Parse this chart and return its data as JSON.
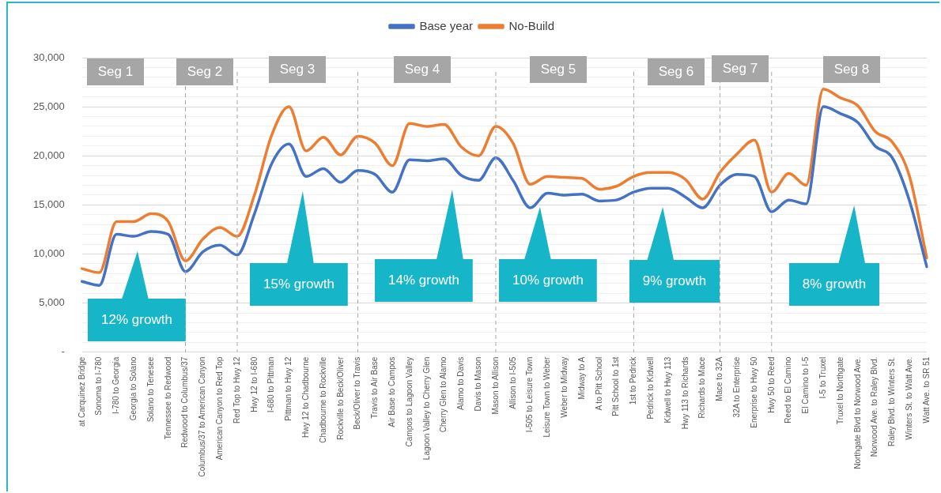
{
  "chart_data": {
    "type": "line",
    "categories": [
      "at Carquinez Bridge",
      "Sonoma to I-780",
      "I-780 to Georgia",
      "Georgia to Solano",
      "Solano to Tenesee",
      "Tennessee to Redwood",
      "Redwood to Columbus/37",
      "Columbus/37 to American Canyon",
      "American Canyon to Red Top",
      "Red Top to Hwy 12",
      "Hwy 12 to I-680",
      "I-680 to Pittman",
      "Pittman to Hwy 12",
      "Hwy 12 to Chadbourne",
      "Chadbourne to Rockville",
      "Rockville to Beck/Oliver",
      "Beck/Oliver to Travis",
      "Travis to Air Base",
      "Air Base to Campos",
      "Campos to Lagoon Valley",
      "Lagoon Valley to Cherry Glen",
      "Cherry Glen to Alamo",
      "Alamo to Davis",
      "Davis to Mason",
      "Mason to Allison",
      "Allison to I-505",
      "I-505 to Leisure Town",
      "Leisure Town to Weber",
      "Weber to Midway",
      "Midway to A",
      "A to Pitt School",
      "Pitt School to 1st",
      "1st to Pedrick",
      "Pedrick to Kidwell",
      "Kidwell to Hwy 113",
      "Hwy 113 to Richards",
      "Richards to Mace",
      "Mace to 32A",
      "32A to Enterprise",
      "Enerprise to Hwy 50",
      "Hwy 50 to Reed",
      "Reed to El Camino",
      "El Camino to I-5",
      "I-5 to Truxel",
      "Truxel to Northgate",
      "Northgate Blvd to Norwood Ave.",
      "Norwood Ave. to Raley Blvd.",
      "Raley Blvd. to Winters St.",
      "Winters St. to Watt Ave.",
      "Watt Ave. to SR 51"
    ],
    "series": [
      {
        "name": "Base year",
        "color": "#4472c4",
        "values": [
          7200,
          6800,
          12000,
          11800,
          12300,
          12000,
          8200,
          10200,
          10900,
          9900,
          14100,
          19200,
          21200,
          17900,
          18700,
          17300,
          18500,
          18100,
          16300,
          19600,
          19500,
          19700,
          18000,
          17500,
          19800,
          17500,
          14700,
          16200,
          16000,
          16100,
          15400,
          15500,
          16300,
          16700,
          16700,
          15800,
          14700,
          17000,
          18100,
          17900,
          14300,
          15500,
          15100,
          25000,
          24300,
          23400,
          21000,
          19800,
          15400,
          8700
        ]
      },
      {
        "name": "No-Build",
        "color": "#ed7d31",
        "values": [
          8500,
          8100,
          13300,
          13300,
          14100,
          13300,
          9300,
          11500,
          12700,
          11800,
          16000,
          22100,
          25000,
          20500,
          21900,
          20100,
          22000,
          21300,
          19000,
          23300,
          23000,
          23200,
          20900,
          20000,
          23000,
          21300,
          17100,
          17900,
          17800,
          17700,
          16600,
          16900,
          17900,
          18300,
          18300,
          17600,
          15600,
          18300,
          20200,
          21600,
          16300,
          18200,
          17000,
          26800,
          25900,
          25100,
          22500,
          21400,
          17900,
          9600
        ]
      }
    ],
    "ylim": [
      0,
      30000
    ],
    "yticks": [
      {
        "value": 0,
        "label": "-"
      },
      {
        "value": 1000,
        "label": null
      },
      {
        "value": 2000,
        "label": null
      },
      {
        "value": 3000,
        "label": null
      },
      {
        "value": 4000,
        "label": null
      },
      {
        "value": 5000,
        "label": "5,000"
      },
      {
        "value": 6000,
        "label": null
      },
      {
        "value": 7000,
        "label": null
      },
      {
        "value": 8000,
        "label": null
      },
      {
        "value": 9000,
        "label": null
      },
      {
        "value": 10000,
        "label": "10,000"
      },
      {
        "value": 11000,
        "label": null
      },
      {
        "value": 12000,
        "label": null
      },
      {
        "value": 13000,
        "label": null
      },
      {
        "value": 14000,
        "label": null
      },
      {
        "value": 15000,
        "label": "15,000"
      },
      {
        "value": 16000,
        "label": null
      },
      {
        "value": 17000,
        "label": null
      },
      {
        "value": 18000,
        "label": null
      },
      {
        "value": 19000,
        "label": null
      },
      {
        "value": 20000,
        "label": "20,000"
      },
      {
        "value": 21000,
        "label": null
      },
      {
        "value": 22000,
        "label": null
      },
      {
        "value": 23000,
        "label": null
      },
      {
        "value": 24000,
        "label": null
      },
      {
        "value": 25000,
        "label": "25,000"
      },
      {
        "value": 26000,
        "label": null
      },
      {
        "value": 27000,
        "label": null
      },
      {
        "value": 28000,
        "label": null
      },
      {
        "value": 29000,
        "label": null
      },
      {
        "value": 30000,
        "label": "30,000"
      }
    ],
    "grid": "y",
    "legend": "top",
    "marker": "none",
    "line_style": "solid",
    "ref_lines": [
      {
        "axis": "x",
        "value": "Redwood to Columbus/37",
        "color": "#a6a6a6",
        "line_style": "dashed"
      },
      {
        "axis": "x",
        "value": "Red Top to Hwy 12",
        "color": "#a6a6a6",
        "line_style": "dashed"
      },
      {
        "axis": "x",
        "value": "Beck/Oliver to Travis",
        "color": "#a6a6a6",
        "line_style": "dashed"
      },
      {
        "axis": "x",
        "value": "Mason to Allison",
        "color": "#a6a6a6",
        "line_style": "dashed"
      },
      {
        "axis": "x",
        "value": "1st to Pedrick",
        "color": "#a6a6a6",
        "line_style": "dashed"
      },
      {
        "axis": "x",
        "value": "Mace to 32A",
        "color": "#a6a6a6",
        "line_style": "dashed"
      },
      {
        "axis": "x",
        "value": "Hwy 50 to Reed",
        "color": "#a6a6a6",
        "line_style": "dashed"
      }
    ],
    "annotations": [
      "Seg 1",
      "Seg 2",
      "Seg 3",
      "Seg 4",
      "Seg 5",
      "Seg 6",
      "Seg 7",
      "Seg 8",
      "12% growth",
      "15% growth",
      "14% growth",
      "10% growth",
      "9% growth",
      "8% growth"
    ]
  }
}
